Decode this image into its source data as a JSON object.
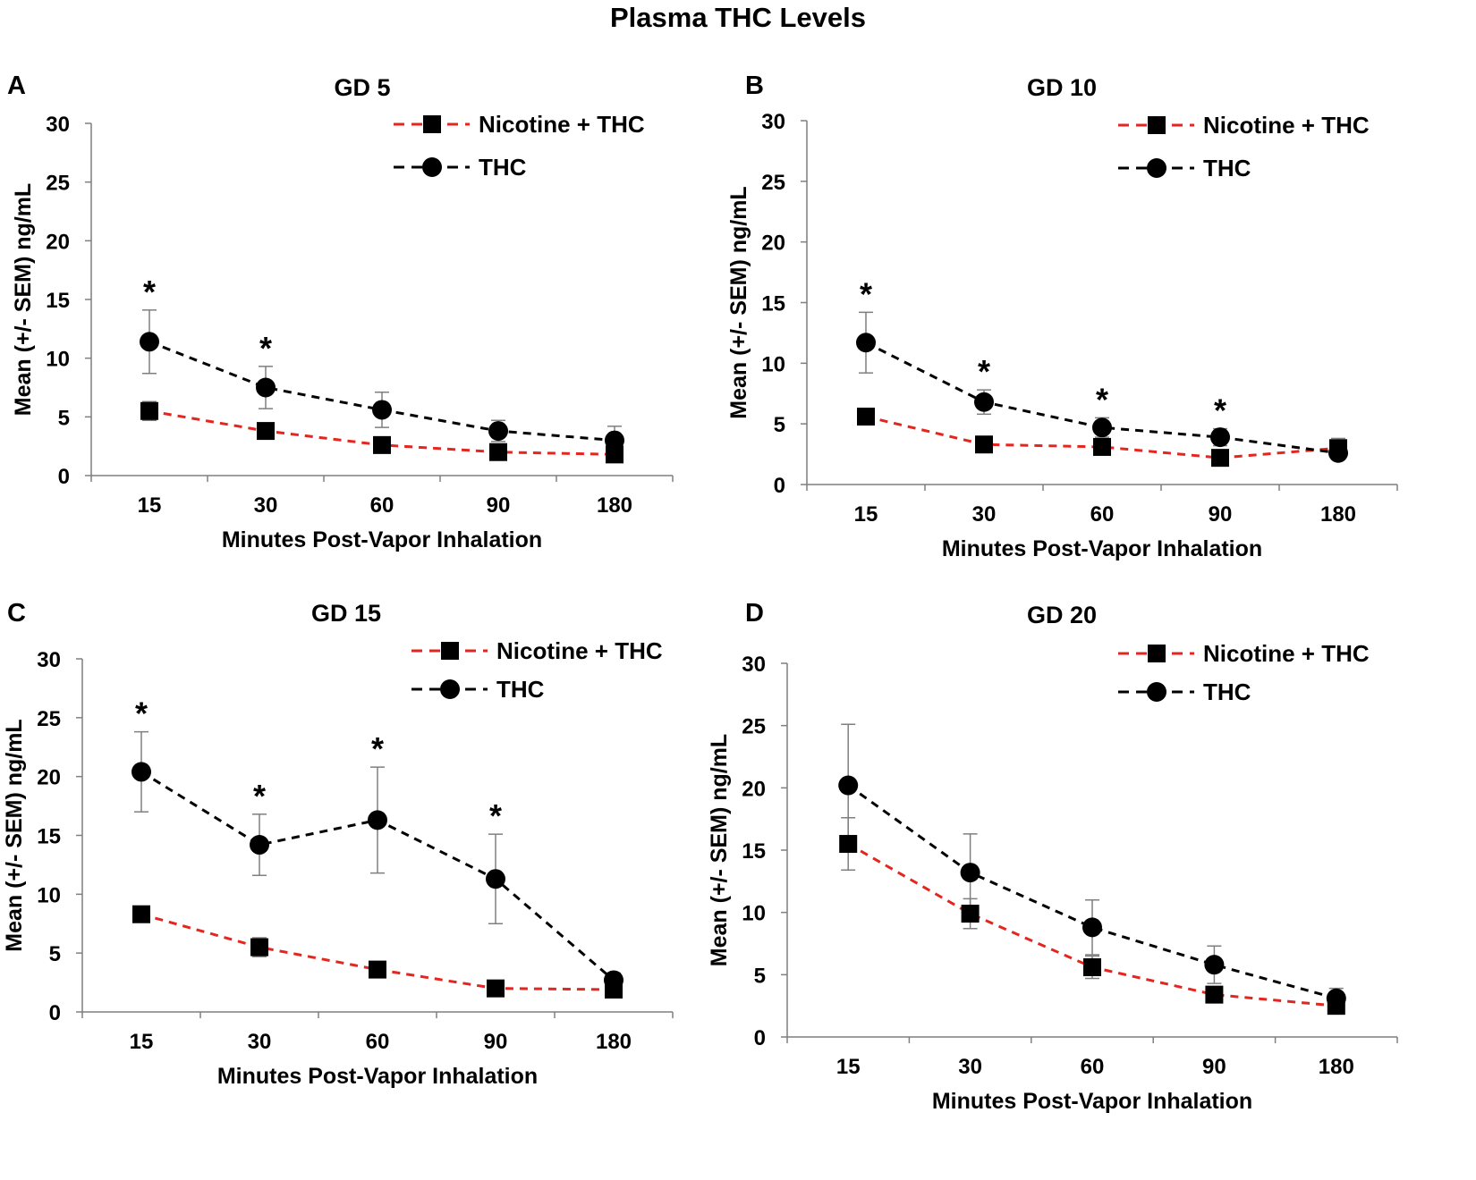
{
  "figure_title": "Plasma THC Levels",
  "chart_data": [
    {
      "type": "line",
      "panel": "A",
      "title": "GD 5",
      "xlabel": "Minutes Post-Vapor Inhalation",
      "ylabel": "Mean (+/- SEM) ng/mL",
      "categories": [
        "15",
        "30",
        "60",
        "90",
        "180"
      ],
      "yticks": [
        "0",
        "5",
        "10",
        "15",
        "20",
        "25",
        "30"
      ],
      "ylim": [
        0,
        30
      ],
      "legend_position": "top-right",
      "series": [
        {
          "name": "Nicotine + THC",
          "color": "#e3261f",
          "marker": "square",
          "values": [
            5.5,
            3.8,
            2.6,
            2.0,
            1.8
          ],
          "errors": [
            0.8,
            0.5,
            0.4,
            0.3,
            0.3
          ]
        },
        {
          "name": "THC",
          "color": "#000000",
          "marker": "circle",
          "values": [
            11.4,
            7.5,
            5.6,
            3.8,
            3.0
          ],
          "errors": [
            2.7,
            1.8,
            1.5,
            0.9,
            1.2
          ]
        }
      ],
      "significance": [
        "*",
        "*",
        "",
        "",
        ""
      ]
    },
    {
      "type": "line",
      "panel": "B",
      "title": "GD 10",
      "xlabel": "Minutes Post-Vapor Inhalation",
      "ylabel": "Mean (+/- SEM) ng/mL",
      "categories": [
        "15",
        "30",
        "60",
        "90",
        "180"
      ],
      "yticks": [
        "0",
        "5",
        "10",
        "15",
        "20",
        "25",
        "30"
      ],
      "ylim": [
        0,
        30
      ],
      "legend_position": "top-right",
      "series": [
        {
          "name": "Nicotine + THC",
          "color": "#e3261f",
          "marker": "square",
          "values": [
            5.6,
            3.3,
            3.1,
            2.2,
            3.0
          ],
          "errors": [
            0.5,
            0.4,
            0.4,
            0.3,
            0.8
          ]
        },
        {
          "name": "THC",
          "color": "#000000",
          "marker": "circle",
          "values": [
            11.7,
            6.8,
            4.7,
            3.9,
            2.6
          ],
          "errors": [
            2.5,
            1.0,
            0.8,
            0.7,
            0.5
          ]
        }
      ],
      "significance": [
        "*",
        "*",
        "*",
        "*",
        ""
      ]
    },
    {
      "type": "line",
      "panel": "C",
      "title": "GD 15",
      "xlabel": "Minutes Post-Vapor Inhalation",
      "ylabel": "Mean (+/- SEM) ng/mL",
      "categories": [
        "15",
        "30",
        "60",
        "90",
        "180"
      ],
      "yticks": [
        "0",
        "5",
        "10",
        "15",
        "20",
        "25",
        "30"
      ],
      "ylim": [
        0,
        30
      ],
      "legend_position": "top-right",
      "series": [
        {
          "name": "Nicotine + THC",
          "color": "#e3261f",
          "marker": "square",
          "values": [
            8.3,
            5.5,
            3.6,
            2.0,
            1.9
          ],
          "errors": [
            0.4,
            0.8,
            0.4,
            0.3,
            0.4
          ]
        },
        {
          "name": "THC",
          "color": "#000000",
          "marker": "circle",
          "values": [
            20.4,
            14.2,
            16.3,
            11.3,
            2.7
          ],
          "errors": [
            3.4,
            2.6,
            4.5,
            3.8,
            0.6
          ]
        }
      ],
      "significance": [
        "*",
        "*",
        "*",
        "*",
        ""
      ]
    },
    {
      "type": "line",
      "panel": "D",
      "title": "GD 20",
      "xlabel": "Minutes Post-Vapor Inhalation",
      "ylabel": "Mean (+/- SEM) ng/mL",
      "categories": [
        "15",
        "30",
        "60",
        "90",
        "180"
      ],
      "yticks": [
        "0",
        "5",
        "10",
        "15",
        "20",
        "25",
        "30"
      ],
      "ylim": [
        0,
        30
      ],
      "legend_position": "top-right",
      "series": [
        {
          "name": "Nicotine + THC",
          "color": "#e3261f",
          "marker": "square",
          "values": [
            15.5,
            9.9,
            5.6,
            3.4,
            2.5
          ],
          "errors": [
            2.1,
            1.2,
            0.9,
            0.6,
            0.4
          ]
        },
        {
          "name": "THC",
          "color": "#000000",
          "marker": "circle",
          "values": [
            20.2,
            13.2,
            8.8,
            5.8,
            3.1
          ],
          "errors": [
            4.9,
            3.1,
            2.2,
            1.5,
            0.8
          ]
        }
      ],
      "significance": [
        "",
        "",
        "",
        "",
        ""
      ]
    }
  ]
}
